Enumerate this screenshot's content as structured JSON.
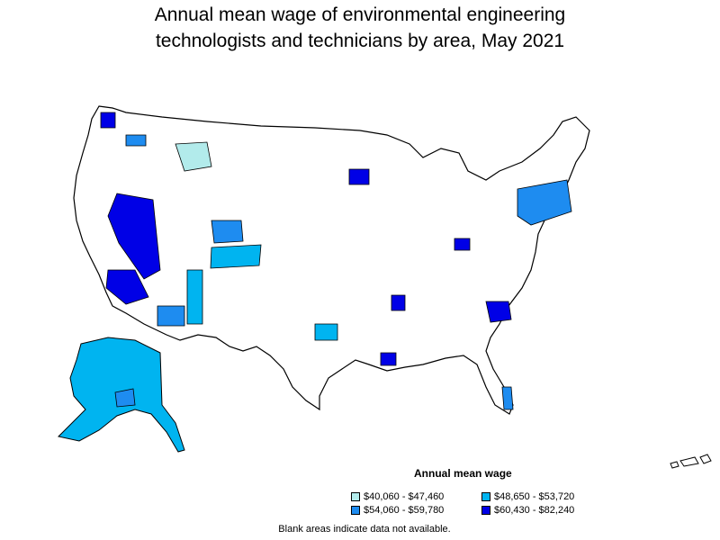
{
  "title_line1": "Annual mean wage of environmental engineering",
  "title_line2": "technologists and technicians by area, May 2021",
  "legend": {
    "title": "Annual mean wage",
    "items": [
      {
        "label": "$40,060 - $47,460",
        "color": "#b2ebeb"
      },
      {
        "label": "$48,650 - $53,720",
        "color": "#00b4f0"
      },
      {
        "label": "$54,060 - $59,780",
        "color": "#1e8cf0"
      },
      {
        "label": "$60,430 - $82,240",
        "color": "#0000e6"
      }
    ]
  },
  "footnote": "Blank areas indicate data not available.",
  "colors": {
    "no_data": "#ffffff",
    "border": "#000000"
  }
}
